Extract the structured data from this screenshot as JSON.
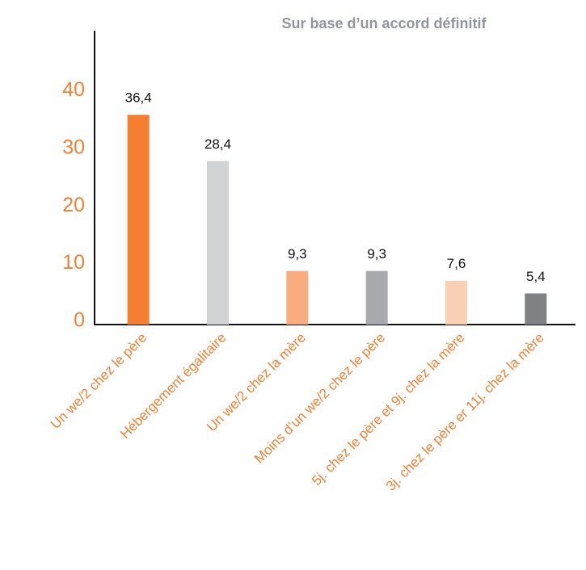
{
  "chart_data": {
    "type": "bar",
    "title": "Sur base d’un accord définitif",
    "categories": [
      "Un we/2 chez le père",
      "Hébergement égalitaire",
      "Un we/2 chez la mère",
      "Moins d’un we/2 chez le père",
      "5j. chez le père et 9j. chez la mère",
      "3j. chez le père er 11j. chez la mère"
    ],
    "values": [
      36.4,
      28.4,
      9.3,
      9.3,
      7.6,
      5.4
    ],
    "value_labels": [
      "36,4",
      "28,4",
      "9,3",
      "9,3",
      "7,6",
      "5,4"
    ],
    "colors": [
      "#f47f30",
      "#d1d2d4",
      "#f9ad7f",
      "#a7a9ac",
      "#fbd0b4",
      "#808184"
    ],
    "ylim": [
      0,
      51
    ],
    "yticks": [
      0,
      10,
      20,
      30,
      40
    ],
    "grid": false
  }
}
